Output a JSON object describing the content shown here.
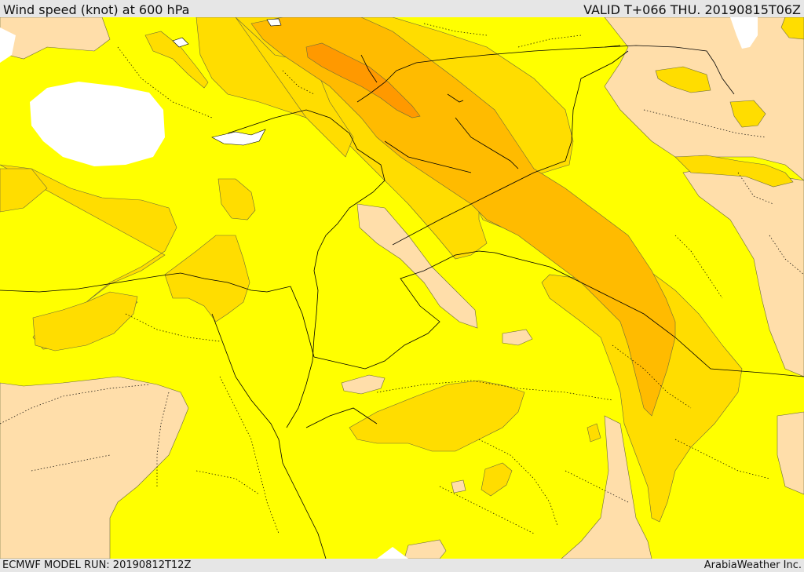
{
  "header": {
    "title": "Wind speed (knot) at 600 hPa",
    "valid": "VALID T+066 THU. 20190815T06Z"
  },
  "footer": {
    "model_run": "ECMWF MODEL RUN: 20190812T12Z",
    "provider": "ArabiaWeather Inc."
  },
  "colors": {
    "water": "#ffffff",
    "speed_low": "#ffdeaa",
    "speed_mid": "#ffff00",
    "speed_high": "#ffdd00",
    "speed_higher": "#ffbb00",
    "speed_highest": "#ff9900",
    "contour_line": "#6b6b3a",
    "border_line": "#000000"
  }
}
